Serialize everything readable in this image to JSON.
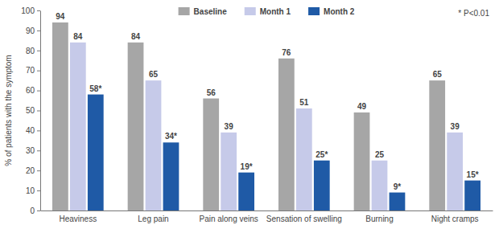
{
  "chart_data": {
    "type": "bar",
    "y_label": "% of patients with the symptom",
    "annotations": [
      "* P<0.01"
    ],
    "categories": [
      "Heaviness",
      "Leg pain",
      "Pain along veins",
      "Sensation of swelling",
      "Burning",
      "Night cramps"
    ],
    "series": [
      {
        "name": "Baseline",
        "color": "#a6a6a6",
        "values": [
          94,
          84,
          56,
          76,
          49,
          65
        ]
      },
      {
        "name": "Month 1",
        "color": "#c6cae9",
        "values": [
          84,
          65,
          39,
          51,
          25,
          39
        ]
      },
      {
        "name": "Month 2",
        "color": "#1f5aa6",
        "values": [
          58,
          34,
          19,
          25,
          9,
          15
        ],
        "value_labels": [
          "58*",
          "34*",
          "19*",
          "25*",
          "9*",
          "15*"
        ]
      }
    ],
    "ylim": [
      0,
      100
    ],
    "yticks": [
      0,
      10,
      20,
      30,
      40,
      50,
      60,
      70,
      80,
      90,
      100
    ],
    "grid": false,
    "legend": "top",
    "data_labels": true
  }
}
